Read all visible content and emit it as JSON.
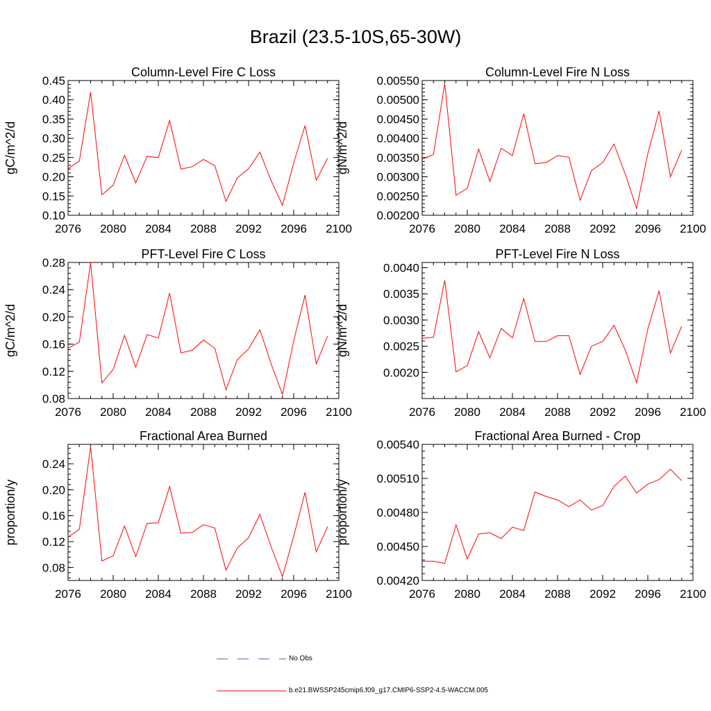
{
  "figure": {
    "title": "Brazil (23.5-10S,65-30W)",
    "line_color": "#ff0000"
  },
  "legend": {
    "entries": [
      {
        "label": "No Obs",
        "style": "dashed",
        "color": "#4466aa"
      },
      {
        "label": "b.e21.BWSSP245cmip6.f09_g17.CMIP6-SSP2-4.5-WACCM.005",
        "style": "solid",
        "color": "#ff0000"
      }
    ]
  },
  "chart_data": [
    {
      "type": "line",
      "title": "Column-Level Fire C Loss",
      "ylabel": "gC/m^2/d",
      "xlim": [
        2076,
        2100
      ],
      "ylim": [
        0.1,
        0.45
      ],
      "xticks": [
        "2076",
        "2080",
        "2084",
        "2088",
        "2092",
        "2096",
        "2100"
      ],
      "yticks": [
        "0.10",
        "0.15",
        "0.20",
        "0.25",
        "0.30",
        "0.35",
        "0.40",
        "0.45"
      ],
      "x": [
        2076,
        2077,
        2078,
        2079,
        2080,
        2081,
        2082,
        2083,
        2084,
        2085,
        2086,
        2087,
        2088,
        2089,
        2090,
        2091,
        2092,
        2093,
        2094,
        2095,
        2096,
        2097,
        2098,
        2099
      ],
      "series": [
        {
          "values": [
            0.221,
            0.241,
            0.42,
            0.153,
            0.178,
            0.256,
            0.184,
            0.253,
            0.25,
            0.346,
            0.22,
            0.226,
            0.245,
            0.229,
            0.136,
            0.197,
            0.221,
            0.264,
            0.19,
            0.126,
            0.236,
            0.333,
            0.191,
            0.248
          ]
        }
      ]
    },
    {
      "type": "line",
      "title": "Column-Level Fire N Loss",
      "ylabel": "gN/m^2/d",
      "xlim": [
        2076,
        2100
      ],
      "ylim": [
        0.002,
        0.0055
      ],
      "xticks": [
        "2076",
        "2080",
        "2084",
        "2088",
        "2092",
        "2096",
        "2100"
      ],
      "yticks": [
        "0.00200",
        "0.00250",
        "0.00300",
        "0.00350",
        "0.00400",
        "0.00450",
        "0.00500",
        "0.00550"
      ],
      "x": [
        2076,
        2077,
        2078,
        2079,
        2080,
        2081,
        2082,
        2083,
        2084,
        2085,
        2086,
        2087,
        2088,
        2089,
        2090,
        2091,
        2092,
        2093,
        2094,
        2095,
        2096,
        2097,
        2098,
        2099
      ],
      "series": [
        {
          "values": [
            0.00345,
            0.00358,
            0.00542,
            0.00252,
            0.0027,
            0.00372,
            0.00288,
            0.00374,
            0.00355,
            0.00464,
            0.00334,
            0.00337,
            0.00355,
            0.00351,
            0.00239,
            0.00316,
            0.00337,
            0.00385,
            0.00307,
            0.00218,
            0.0036,
            0.00471,
            0.003,
            0.00369
          ]
        }
      ]
    },
    {
      "type": "line",
      "title": "PFT-Level Fire C Loss",
      "ylabel": "gC/m^2/d",
      "xlim": [
        2076,
        2100
      ],
      "ylim": [
        0.08,
        0.28
      ],
      "xticks": [
        "2076",
        "2080",
        "2084",
        "2088",
        "2092",
        "2096",
        "2100"
      ],
      "yticks": [
        "0.08",
        "0.12",
        "0.16",
        "0.20",
        "0.24",
        "0.28"
      ],
      "x": [
        2076,
        2077,
        2078,
        2079,
        2080,
        2081,
        2082,
        2083,
        2084,
        2085,
        2086,
        2087,
        2088,
        2089,
        2090,
        2091,
        2092,
        2093,
        2094,
        2095,
        2096,
        2097,
        2098,
        2099
      ],
      "series": [
        {
          "values": [
            0.154,
            0.163,
            0.28,
            0.103,
            0.123,
            0.173,
            0.126,
            0.174,
            0.169,
            0.235,
            0.147,
            0.151,
            0.166,
            0.154,
            0.093,
            0.137,
            0.153,
            0.181,
            0.131,
            0.086,
            0.165,
            0.232,
            0.131,
            0.172
          ]
        }
      ]
    },
    {
      "type": "line",
      "title": "PFT-Level Fire N Loss",
      "ylabel": "gN/m^2/d",
      "xlim": [
        2076,
        2100
      ],
      "ylim": [
        0.0015,
        0.0041
      ],
      "xticks": [
        "2076",
        "2080",
        "2084",
        "2088",
        "2092",
        "2096",
        "2100"
      ],
      "yticks": [
        "0.0020",
        "0.0025",
        "0.0030",
        "0.0035",
        "0.0040"
      ],
      "x": [
        2076,
        2077,
        2078,
        2079,
        2080,
        2081,
        2082,
        2083,
        2084,
        2085,
        2086,
        2087,
        2088,
        2089,
        2090,
        2091,
        2092,
        2093,
        2094,
        2095,
        2096,
        2097,
        2098,
        2099
      ],
      "series": [
        {
          "values": [
            0.00265,
            0.00267,
            0.00376,
            0.00201,
            0.00213,
            0.00278,
            0.00228,
            0.00284,
            0.00266,
            0.00341,
            0.00259,
            0.00259,
            0.0027,
            0.0027,
            0.00196,
            0.0025,
            0.00259,
            0.0029,
            0.00243,
            0.0018,
            0.00283,
            0.00356,
            0.00237,
            0.00288
          ]
        }
      ]
    },
    {
      "type": "line",
      "title": "Fractional Area Burned",
      "ylabel": "proportion/y",
      "xlim": [
        2076,
        2100
      ],
      "ylim": [
        0.06,
        0.27
      ],
      "xticks": [
        "2076",
        "2080",
        "2084",
        "2088",
        "2092",
        "2096",
        "2100"
      ],
      "yticks": [
        "0.08",
        "0.12",
        "0.16",
        "0.20",
        "0.24"
      ],
      "x": [
        2076,
        2077,
        2078,
        2079,
        2080,
        2081,
        2082,
        2083,
        2084,
        2085,
        2086,
        2087,
        2088,
        2089,
        2090,
        2091,
        2092,
        2093,
        2094,
        2095,
        2096,
        2097,
        2098,
        2099
      ],
      "series": [
        {
          "values": [
            0.127,
            0.139,
            0.267,
            0.09,
            0.098,
            0.144,
            0.097,
            0.148,
            0.149,
            0.205,
            0.133,
            0.134,
            0.146,
            0.141,
            0.076,
            0.11,
            0.126,
            0.162,
            0.112,
            0.066,
            0.128,
            0.196,
            0.104,
            0.143
          ]
        }
      ]
    },
    {
      "type": "line",
      "title": "Fractional Area Burned - Crop",
      "ylabel": "proportion/y",
      "xlim": [
        2076,
        2100
      ],
      "ylim": [
        0.0042,
        0.0054
      ],
      "xticks": [
        "2076",
        "2080",
        "2084",
        "2088",
        "2092",
        "2096",
        "2100"
      ],
      "yticks": [
        "0.00420",
        "0.00450",
        "0.00480",
        "0.00510",
        "0.00540"
      ],
      "x": [
        2076,
        2077,
        2078,
        2079,
        2080,
        2081,
        2082,
        2083,
        2084,
        2085,
        2086,
        2087,
        2088,
        2089,
        2090,
        2091,
        2092,
        2093,
        2094,
        2095,
        2096,
        2097,
        2098,
        2099
      ],
      "series": [
        {
          "values": [
            0.00437,
            0.00437,
            0.00435,
            0.00469,
            0.00439,
            0.00461,
            0.00462,
            0.00457,
            0.00467,
            0.00464,
            0.00498,
            0.00494,
            0.00491,
            0.00485,
            0.00491,
            0.00482,
            0.00486,
            0.00503,
            0.00512,
            0.00497,
            0.00505,
            0.00509,
            0.00518,
            0.00508
          ]
        }
      ]
    }
  ]
}
